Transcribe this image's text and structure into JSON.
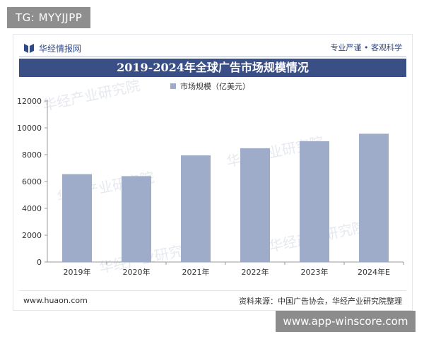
{
  "tag": {
    "text": "TG: MYYJJPP"
  },
  "header": {
    "brand_name": "华经情报网",
    "slogan": "专业严谨 • 客观科学",
    "title": "2019-2024年全球广告市场规模情况"
  },
  "watermark_text": "华经产业研究院",
  "footer": {
    "url": "www.huaon.com",
    "source": "资料来源：中国广告协会，华经产业研究院整理"
  },
  "site_badge": {
    "text": "www.app-winscore.com"
  },
  "colors": {
    "title_bar": "#3a4f86",
    "bar": "#9facc9",
    "brand": "#2f4a86"
  },
  "chart_data": {
    "type": "bar",
    "title": "2019-2024年全球广告市场规模情况",
    "categories": [
      "2019年",
      "2020年",
      "2021年",
      "2022年",
      "2023年",
      "2024年E"
    ],
    "series": [
      {
        "name": "市场规模（亿美元）",
        "values": [
          6550,
          6400,
          7950,
          8480,
          9000,
          9560
        ]
      }
    ],
    "ylim": [
      0,
      12000
    ],
    "yticks": [
      0,
      2000,
      4000,
      6000,
      8000,
      10000,
      12000
    ],
    "xlabel": "",
    "ylabel": "",
    "legend": "top-center",
    "grid": false
  }
}
